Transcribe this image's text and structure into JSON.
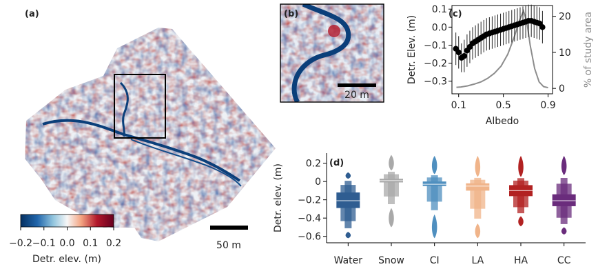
{
  "panel_labels": {
    "a": "(a)",
    "b": "(b)",
    "c": "(c)",
    "d": "(d)"
  },
  "map": {
    "scale_bar_label": "50 m",
    "colorbar_ticks": [
      "−0.2",
      "−0.1",
      "0.0",
      "0.1",
      "0.2"
    ],
    "colorbar_label": "Detr. elev. (m)",
    "colors": {
      "low": "#053061",
      "mid": "#f7f7f7",
      "high": "#67001f",
      "channel": "#0b3f7a"
    }
  },
  "inset": {
    "scale_bar_label": "20 m"
  },
  "chart_data": [
    {
      "id": "c",
      "type": "line",
      "xlabel": "Albedo",
      "ylabel": "Detr. Elev. (m)",
      "y2label": "% of study area",
      "xlim": [
        0.04,
        0.94
      ],
      "ylim": [
        -0.37,
        0.12
      ],
      "y2lim": [
        -1.5,
        23
      ],
      "xticks": [
        "0.1",
        "0.5",
        "0.9"
      ],
      "xtick_values": [
        0.1,
        0.5,
        0.9
      ],
      "yticks": [
        "0.1",
        "0.0",
        "−0.1",
        "−0.2",
        "−0.3"
      ],
      "ytick_values": [
        0.1,
        0.0,
        -0.1,
        -0.2,
        -0.3
      ],
      "y2ticks": [
        "0",
        "10",
        "20"
      ],
      "y2tick_values": [
        0,
        10,
        20
      ],
      "series": [
        {
          "kind": "mean_with_errorbars",
          "axis": "left",
          "color": "#000000",
          "x": [
            0.075,
            0.1,
            0.125,
            0.15,
            0.175,
            0.2,
            0.225,
            0.25,
            0.275,
            0.3,
            0.325,
            0.35,
            0.375,
            0.4,
            0.425,
            0.45,
            0.475,
            0.5,
            0.525,
            0.55,
            0.575,
            0.6,
            0.625,
            0.65,
            0.675,
            0.7,
            0.725,
            0.75,
            0.775,
            0.8,
            0.825,
            0.85
          ],
          "y": [
            -0.12,
            -0.14,
            -0.17,
            -0.16,
            -0.13,
            -0.11,
            -0.09,
            -0.08,
            -0.07,
            -0.06,
            -0.05,
            -0.04,
            -0.035,
            -0.03,
            -0.025,
            -0.02,
            -0.015,
            -0.01,
            -0.005,
            0.0,
            0.005,
            0.01,
            0.015,
            0.02,
            0.025,
            0.03,
            0.035,
            0.035,
            0.03,
            0.025,
            0.02,
            0.0
          ],
          "err": [
            0.09,
            0.09,
            0.08,
            0.09,
            0.09,
            0.09,
            0.09,
            0.09,
            0.09,
            0.09,
            0.09,
            0.09,
            0.09,
            0.09,
            0.09,
            0.09,
            0.09,
            0.09,
            0.09,
            0.09,
            0.09,
            0.09,
            0.09,
            0.09,
            0.09,
            0.09,
            0.09,
            0.09,
            0.09,
            0.09,
            0.09,
            0.09
          ]
        },
        {
          "kind": "line",
          "axis": "right",
          "color": "#8c8c8c",
          "x": [
            0.08,
            0.12,
            0.18,
            0.24,
            0.3,
            0.36,
            0.42,
            0.48,
            0.54,
            0.6,
            0.64,
            0.68,
            0.71,
            0.74,
            0.78,
            0.82,
            0.86,
            0.9
          ],
          "y": [
            0.3,
            0.4,
            0.7,
            1.2,
            1.8,
            2.8,
            4.2,
            6.2,
            9.5,
            14.5,
            18.5,
            21.5,
            18.5,
            12.0,
            5.5,
            1.8,
            0.5,
            0.2
          ]
        }
      ]
    },
    {
      "id": "d",
      "type": "boxen",
      "ylabel": "Detr. elev. (m)",
      "ylim": [
        -0.67,
        0.31
      ],
      "yticks": [
        "0.2",
        "0",
        "−0.2",
        "−0.4",
        "−0.6"
      ],
      "ytick_values": [
        0.2,
        0.0,
        -0.2,
        -0.4,
        -0.6
      ],
      "categories": [
        "Water",
        "Snow",
        "CI",
        "LA",
        "HA",
        "CC"
      ],
      "colors": [
        "#2f5d91",
        "#a9a9a9",
        "#4f8fbf",
        "#f0b48a",
        "#b22222",
        "#6a2c7c"
      ],
      "median": [
        -0.21,
        0.01,
        -0.03,
        -0.05,
        -0.1,
        -0.21
      ],
      "q1": [
        -0.29,
        -0.01,
        -0.05,
        -0.1,
        -0.16,
        -0.27
      ],
      "q3": [
        -0.12,
        0.03,
        0.0,
        -0.02,
        -0.04,
        -0.14
      ],
      "min": [
        -0.62,
        -0.5,
        -0.62,
        -0.62,
        -0.49,
        -0.58
      ],
      "max": [
        0.1,
        0.29,
        0.28,
        0.28,
        0.28,
        0.28
      ],
      "lower_tail_top": [
        -0.55,
        -0.29,
        -0.36,
        -0.46,
        -0.38,
        -0.5
      ],
      "upper_tail_bottom": [
        0.03,
        0.12,
        0.08,
        0.05,
        0.05,
        0.07
      ]
    }
  ]
}
